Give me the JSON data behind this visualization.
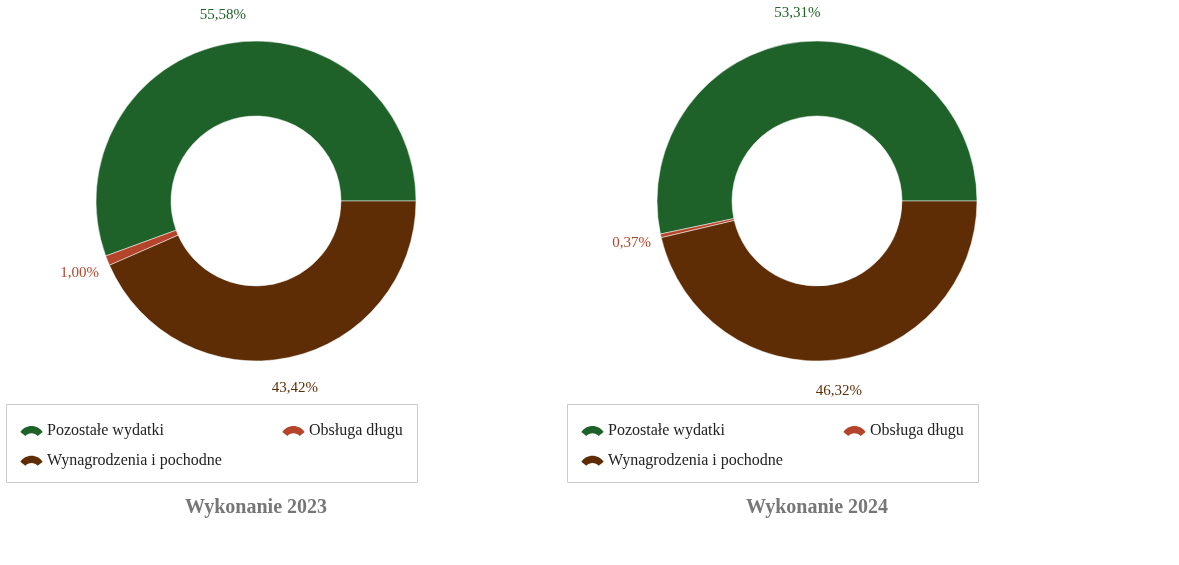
{
  "chart_data": [
    {
      "type": "donut",
      "title": "Wykonanie 2023",
      "categories": [
        "Pozostałe wydatki",
        "Obsługa długu",
        "Wynagrodzenia i pochodne"
      ],
      "values": [
        55.58,
        1.0,
        43.42
      ],
      "colors": [
        "#1e6129",
        "#b5452a",
        "#5e2d06"
      ],
      "value_labels": [
        "55,58%",
        "1,00%",
        "43,42%"
      ],
      "legend": "bottom"
    },
    {
      "type": "donut",
      "title": "Wykonanie 2024",
      "categories": [
        "Pozostałe wydatki",
        "Obsługa długu",
        "Wynagrodzenia i pochodne"
      ],
      "values": [
        53.31,
        0.37,
        46.32
      ],
      "colors": [
        "#1e6129",
        "#b5452a",
        "#5e2d06"
      ],
      "value_labels": [
        "53,31%",
        "0,37%",
        "46,32%"
      ],
      "legend": "bottom"
    }
  ]
}
